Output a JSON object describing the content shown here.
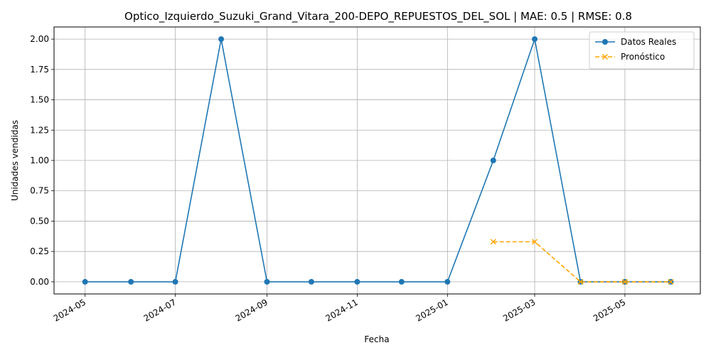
{
  "chart_data": {
    "type": "line",
    "title": "Optico_Izquierdo_Suzuki_Grand_Vitara_200-DEPO_REPUESTOS_DEL_SOL | MAE: 0.5 | RMSE: 0.8",
    "xlabel": "Fecha",
    "ylabel": "Unidades vendidas",
    "xlim": [
      "2024-04-10",
      "2025-06-21"
    ],
    "ylim": [
      -0.1,
      2.1
    ],
    "grid": true,
    "legend_position": "top-right",
    "x_ticks": [
      "2024-05",
      "2024-07",
      "2024-09",
      "2024-11",
      "2025-01",
      "2025-03",
      "2025-05"
    ],
    "y_ticks": [
      "0.00",
      "0.25",
      "0.50",
      "0.75",
      "1.00",
      "1.25",
      "1.50",
      "1.75",
      "2.00"
    ],
    "series": [
      {
        "name": "Datos Reales",
        "color": "#1f77b4",
        "marker": "circle",
        "linestyle": "solid",
        "x": [
          "2024-05-01",
          "2024-06-01",
          "2024-07-01",
          "2024-08-01",
          "2024-09-01",
          "2024-10-01",
          "2024-11-01",
          "2024-12-01",
          "2025-01-01",
          "2025-02-01",
          "2025-03-01",
          "2025-04-01",
          "2025-05-01",
          "2025-06-01"
        ],
        "y": [
          0,
          0,
          0,
          2,
          0,
          0,
          0,
          0,
          0,
          1,
          2,
          0,
          0,
          0
        ]
      },
      {
        "name": "Pronóstico",
        "color": "#ffa500",
        "marker": "x",
        "linestyle": "dashed",
        "x": [
          "2025-02-01",
          "2025-03-01",
          "2025-04-01",
          "2025-05-01",
          "2025-06-01"
        ],
        "y": [
          0.33,
          0.33,
          0,
          0,
          0
        ]
      }
    ]
  }
}
